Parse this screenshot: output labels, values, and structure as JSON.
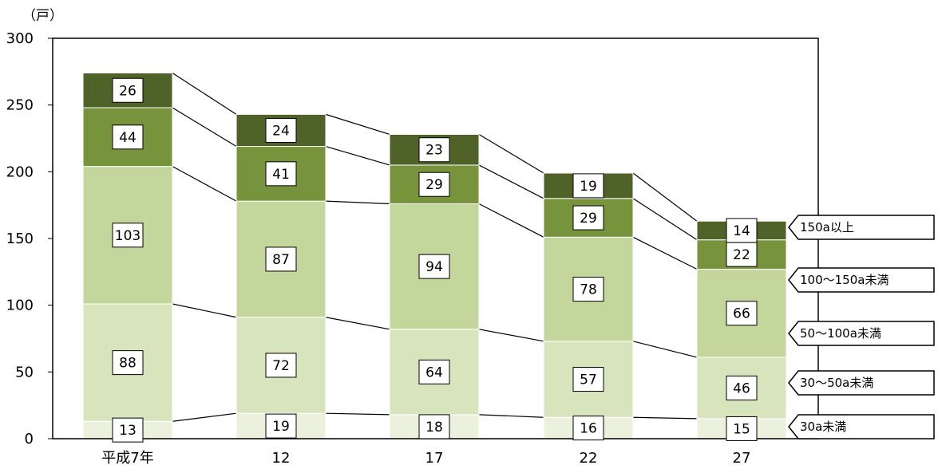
{
  "chart_data": {
    "type": "bar",
    "stacked": true,
    "unit_label": "（戸）",
    "categories": [
      "平成7年",
      "12",
      "17",
      "22",
      "27"
    ],
    "ylim": [
      0,
      300
    ],
    "yticks": [
      0,
      50,
      100,
      150,
      200,
      250,
      300
    ],
    "grid": false,
    "legend_position": "right",
    "series": [
      {
        "name": "30a未満",
        "values": [
          13,
          19,
          18,
          16,
          15
        ],
        "color": "#ebf1dd"
      },
      {
        "name": "30〜50a未満",
        "values": [
          88,
          72,
          64,
          57,
          46
        ],
        "color": "#d7e4bc"
      },
      {
        "name": "50〜100a未満",
        "values": [
          103,
          87,
          94,
          78,
          66
        ],
        "color": "#c3d69b"
      },
      {
        "name": "100〜150a未満",
        "values": [
          44,
          41,
          29,
          29,
          22
        ],
        "color": "#77933c"
      },
      {
        "name": "150a以上",
        "values": [
          26,
          24,
          23,
          19,
          14
        ],
        "color": "#4f6228"
      }
    ]
  }
}
